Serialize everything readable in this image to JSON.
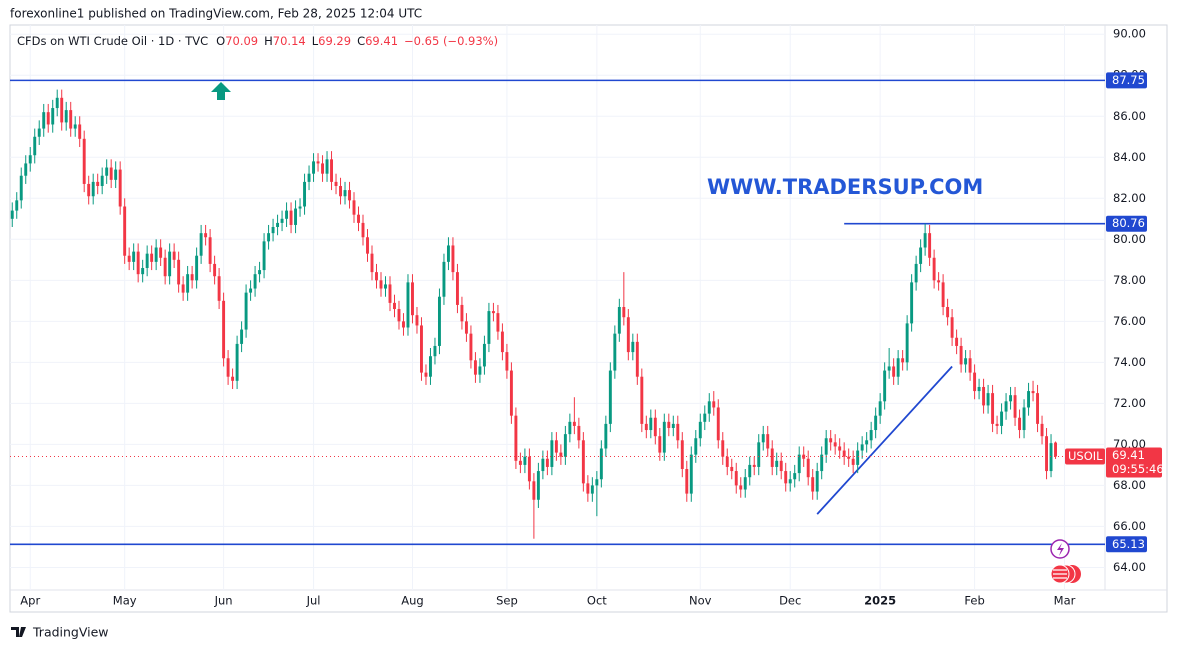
{
  "header": {
    "published": "forexonline1 published on TradingView.com, Feb 28, 2025 12:04 UTC",
    "watermark": "WWW.TRADERSUP.COM",
    "symbol": "USOIL",
    "countdown": "09:55:46"
  },
  "footer": {
    "brand": "TradingView"
  },
  "chart_data": {
    "type": "candlestick",
    "title": "CFDs on WTI Crude Oil · 1D · TVC",
    "ohlc_labels": [
      "O",
      "H",
      "L",
      "C"
    ],
    "change": "−0.65 (−0.93%)",
    "up_color": "#089981",
    "down_color": "#f23645",
    "level_color": "#2048d0",
    "grid": true,
    "ylim": [
      62.9,
      90.45
    ],
    "yticks": [
      {
        "value": 64,
        "label": "64.00"
      },
      {
        "value": 66,
        "label": "66.00"
      },
      {
        "value": 68,
        "label": "68.00"
      },
      {
        "value": 70,
        "label": "70.00"
      },
      {
        "value": 72,
        "label": "72.00"
      },
      {
        "value": 74,
        "label": "74.00"
      },
      {
        "value": 76,
        "label": "76.00"
      },
      {
        "value": 78,
        "label": "78.00"
      },
      {
        "value": 80,
        "label": "80.00"
      },
      {
        "value": 82,
        "label": "82.00"
      },
      {
        "value": 84,
        "label": "84.00"
      },
      {
        "value": 86,
        "label": "86.00"
      },
      {
        "value": 88,
        "label": "88.00"
      },
      {
        "value": 90,
        "label": "90.00"
      }
    ],
    "xlim": [
      -0.5,
      243
    ],
    "xticks": [
      {
        "value": 4,
        "label": "Apr"
      },
      {
        "value": 25,
        "label": "May"
      },
      {
        "value": 47,
        "label": "Jun"
      },
      {
        "value": 67,
        "label": "Jul"
      },
      {
        "value": 89,
        "label": "Aug"
      },
      {
        "value": 110,
        "label": "Sep"
      },
      {
        "value": 130,
        "label": "Oct"
      },
      {
        "value": 153,
        "label": "Nov"
      },
      {
        "value": 173,
        "label": "Dec"
      },
      {
        "value": 193,
        "label": "2025"
      },
      {
        "value": 214,
        "label": "Feb"
      },
      {
        "value": 234,
        "label": "Mar"
      }
    ],
    "levels": [
      {
        "value": 87.75
      },
      {
        "value": 80.76,
        "from": 185
      },
      {
        "value": 65.13
      }
    ],
    "trendline": {
      "x": [
        179,
        209
      ],
      "y": [
        66.6,
        73.8
      ]
    },
    "open": [
      81.0,
      81.4,
      81.9,
      83.1,
      83.7,
      84.1,
      85.0,
      85.4,
      86.2,
      85.6,
      86.4,
      86.9,
      85.7,
      86.3,
      85.4,
      85.6,
      84.9,
      82.7,
      82.1,
      82.8,
      82.6,
      83.1,
      83.5,
      82.9,
      83.4,
      81.6,
      79.2,
      78.9,
      79.4,
      78.3,
      78.6,
      79.3,
      78.9,
      79.6,
      79.1,
      78.2,
      79.4,
      79.0,
      77.8,
      77.4,
      78.3,
      78.0,
      79.2,
      80.3,
      80.1,
      78.8,
      78.2,
      77.0,
      74.2,
      73.3,
      73.1,
      74.9,
      75.6,
      77.4,
      77.6,
      78.3,
      78.5,
      79.9,
      80.3,
      80.6,
      80.8,
      81.0,
      81.4,
      80.7,
      81.5,
      81.6,
      82.8,
      83.2,
      83.8,
      83.7,
      83.2,
      83.9,
      82.8,
      82.6,
      82.1,
      82.4,
      81.9,
      81.2,
      80.8,
      80.1,
      79.3,
      78.4,
      78.0,
      77.6,
      77.8,
      76.9,
      76.6,
      76.0,
      75.7,
      77.9,
      76.3,
      75.8,
      73.5,
      73.3,
      74.3,
      74.8,
      77.2,
      78.9,
      79.7,
      78.4,
      76.8,
      76.0,
      75.4,
      74.1,
      73.4,
      73.8,
      74.9,
      76.5,
      76.4,
      75.5,
      74.5,
      73.6,
      71.4,
      69.2,
      69.0,
      69.4,
      68.2,
      67.3,
      68.7,
      69.3,
      68.9,
      70.2,
      69.6,
      69.4,
      70.5,
      71.1,
      70.9,
      70.2,
      68.1,
      67.6,
      68.0,
      68.3,
      69.8,
      71.0,
      73.6,
      75.4,
      76.7,
      76.2,
      74.5,
      75.0,
      73.3,
      71.0,
      70.7,
      71.3,
      70.4,
      69.6,
      71.1,
      70.8,
      71.0,
      70.2,
      68.8,
      67.6,
      69.5,
      70.3,
      71.1,
      71.5,
      72.1,
      71.8,
      70.2,
      69.4,
      68.9,
      68.7,
      68.0,
      67.8,
      68.4,
      69.0,
      68.9,
      70.1,
      70.5,
      69.8,
      68.9,
      69.2,
      68.7,
      68.1,
      68.3,
      68.6,
      69.5,
      69.3,
      68.4,
      67.7,
      68.7,
      69.5,
      70.3,
      70.1,
      69.9,
      69.7,
      69.4,
      69.3,
      69.0,
      69.7,
      70.0,
      70.2,
      70.7,
      71.4,
      72.1,
      73.6,
      73.8,
      73.3,
      74.2,
      74.0,
      75.9,
      77.9,
      78.8,
      79.6,
      80.3,
      79.1,
      78.0,
      77.9,
      76.7,
      76.2,
      75.2,
      74.8,
      73.9,
      74.2,
      73.5,
      72.6,
      72.8,
      71.9,
      72.5,
      71.0,
      70.9,
      71.6,
      72.1,
      72.4,
      71.3,
      70.7,
      71.8,
      72.6,
      72.5,
      71.0,
      70.4,
      68.7,
      70.09
    ],
    "high": [
      81.8,
      82.3,
      83.5,
      84.1,
      84.5,
      85.4,
      85.8,
      86.6,
      86.6,
      86.8,
      87.3,
      87.3,
      86.7,
      86.7,
      86.0,
      86.0,
      85.3,
      83.1,
      83.2,
      83.2,
      83.5,
      83.9,
      83.9,
      83.8,
      83.8,
      82.0,
      79.6,
      79.8,
      79.8,
      79.0,
      79.7,
      79.7,
      80.0,
      80.0,
      79.5,
      79.8,
      79.8,
      79.4,
      78.2,
      78.7,
      78.7,
      79.6,
      80.7,
      80.7,
      80.5,
      79.2,
      78.6,
      77.4,
      74.6,
      73.7,
      75.3,
      76.0,
      77.8,
      78.0,
      78.7,
      78.9,
      80.3,
      80.7,
      81.0,
      81.2,
      81.4,
      81.8,
      81.8,
      81.9,
      82.0,
      83.2,
      83.6,
      84.2,
      84.2,
      84.1,
      84.3,
      84.3,
      83.2,
      83.0,
      82.8,
      82.8,
      82.3,
      81.6,
      81.2,
      80.5,
      79.7,
      78.8,
      78.4,
      78.2,
      78.2,
      77.3,
      77.0,
      76.4,
      78.3,
      78.3,
      76.7,
      76.2,
      73.9,
      74.7,
      75.2,
      77.6,
      79.3,
      80.1,
      80.1,
      78.8,
      77.2,
      76.4,
      75.8,
      74.5,
      74.2,
      75.3,
      76.9,
      76.9,
      76.8,
      75.9,
      74.9,
      74.0,
      71.8,
      69.6,
      69.8,
      69.8,
      68.6,
      69.1,
      69.7,
      69.7,
      70.6,
      70.6,
      70.0,
      70.9,
      71.5,
      72.3,
      71.3,
      70.6,
      68.5,
      68.4,
      68.7,
      70.2,
      71.4,
      74.0,
      75.8,
      77.1,
      78.4,
      76.6,
      75.4,
      75.4,
      73.7,
      71.4,
      71.7,
      71.7,
      70.8,
      71.5,
      71.5,
      71.4,
      71.4,
      70.6,
      69.2,
      69.9,
      70.7,
      71.5,
      71.9,
      72.5,
      72.6,
      72.2,
      70.6,
      69.8,
      69.3,
      69.1,
      68.4,
      68.8,
      69.4,
      69.4,
      70.5,
      70.9,
      70.9,
      70.2,
      69.6,
      69.6,
      69.1,
      68.7,
      69.0,
      69.9,
      69.9,
      69.7,
      68.8,
      69.1,
      69.9,
      70.7,
      70.7,
      70.5,
      70.3,
      70.1,
      69.8,
      69.7,
      70.1,
      70.4,
      70.6,
      71.1,
      71.8,
      72.5,
      74.0,
      74.7,
      74.2,
      74.6,
      74.6,
      76.3,
      78.3,
      79.2,
      80.0,
      80.76,
      80.7,
      79.5,
      78.4,
      78.3,
      77.1,
      76.6,
      75.6,
      75.2,
      74.6,
      74.6,
      73.9,
      73.2,
      73.2,
      72.9,
      72.9,
      71.4,
      72.0,
      72.5,
      72.8,
      72.8,
      71.7,
      72.2,
      73.0,
      73.1,
      72.9,
      71.4,
      70.8,
      70.5,
      70.14
    ],
    "low": [
      80.6,
      81.0,
      81.5,
      82.7,
      83.3,
      83.7,
      84.6,
      85.0,
      85.2,
      85.2,
      86.0,
      85.3,
      85.3,
      85.0,
      85.0,
      84.5,
      82.3,
      81.7,
      81.7,
      82.2,
      82.2,
      82.7,
      82.5,
      82.5,
      81.2,
      78.8,
      78.5,
      78.5,
      77.9,
      77.9,
      78.2,
      78.5,
      78.5,
      78.7,
      77.8,
      77.8,
      78.6,
      77.4,
      77.0,
      77.0,
      77.6,
      77.6,
      78.8,
      79.7,
      78.4,
      77.8,
      76.6,
      73.8,
      72.9,
      72.7,
      72.7,
      74.5,
      75.2,
      77.0,
      77.2,
      77.9,
      78.1,
      79.5,
      79.9,
      80.2,
      80.4,
      80.6,
      80.3,
      80.3,
      81.1,
      81.2,
      82.4,
      82.8,
      83.3,
      82.8,
      82.8,
      82.4,
      82.2,
      81.7,
      81.7,
      81.5,
      80.8,
      80.4,
      79.7,
      78.9,
      78.0,
      77.6,
      77.2,
      77.2,
      76.5,
      76.2,
      75.6,
      75.3,
      75.3,
      75.9,
      75.4,
      73.1,
      72.9,
      72.9,
      73.9,
      74.4,
      76.8,
      78.5,
      78.0,
      76.4,
      75.6,
      75.0,
      73.7,
      73.0,
      73.0,
      73.4,
      74.5,
      76.0,
      75.1,
      74.1,
      73.2,
      71.0,
      68.8,
      68.6,
      68.6,
      67.8,
      65.4,
      66.9,
      68.3,
      68.5,
      68.5,
      69.2,
      69.0,
      69.0,
      70.1,
      70.5,
      69.8,
      67.7,
      67.2,
      67.2,
      66.5,
      67.9,
      69.4,
      70.6,
      73.2,
      75.0,
      75.8,
      74.1,
      74.1,
      72.9,
      70.6,
      70.3,
      70.3,
      70.0,
      69.2,
      69.2,
      70.4,
      70.4,
      69.8,
      68.4,
      67.2,
      67.2,
      69.1,
      69.9,
      70.7,
      71.1,
      71.4,
      69.8,
      69.0,
      68.5,
      68.3,
      67.6,
      67.4,
      67.4,
      68.0,
      68.5,
      68.5,
      69.7,
      69.4,
      68.5,
      68.5,
      68.3,
      67.7,
      67.7,
      67.9,
      68.2,
      68.9,
      68.0,
      67.3,
      67.3,
      68.3,
      69.1,
      69.7,
      69.5,
      69.3,
      69.0,
      68.9,
      68.6,
      68.6,
      69.3,
      69.6,
      69.8,
      70.3,
      71.0,
      71.7,
      73.2,
      72.9,
      72.9,
      73.6,
      73.6,
      75.5,
      77.5,
      78.4,
      79.2,
      78.7,
      77.6,
      77.5,
      76.3,
      75.8,
      74.8,
      74.4,
      73.5,
      73.5,
      73.1,
      72.2,
      72.2,
      71.5,
      71.5,
      70.6,
      70.5,
      70.5,
      71.2,
      71.7,
      70.9,
      70.3,
      70.3,
      71.4,
      72.1,
      70.6,
      70.0,
      68.3,
      68.4,
      69.29
    ],
    "close": [
      81.4,
      81.9,
      83.1,
      83.7,
      84.1,
      85.0,
      85.4,
      86.2,
      85.6,
      86.4,
      86.9,
      85.7,
      86.3,
      85.4,
      85.6,
      84.9,
      82.7,
      82.1,
      82.8,
      82.6,
      83.1,
      83.5,
      82.9,
      83.4,
      81.6,
      79.2,
      78.9,
      79.4,
      78.3,
      78.6,
      79.3,
      78.9,
      79.6,
      79.1,
      78.2,
      79.4,
      79.0,
      77.8,
      77.4,
      78.3,
      78.0,
      79.2,
      80.3,
      80.1,
      78.8,
      78.2,
      77.0,
      74.2,
      73.3,
      73.1,
      74.9,
      75.6,
      77.4,
      77.6,
      78.3,
      78.5,
      79.9,
      80.3,
      80.6,
      80.8,
      81.0,
      81.4,
      80.7,
      81.5,
      81.6,
      82.8,
      83.2,
      83.8,
      83.7,
      83.2,
      83.9,
      82.8,
      82.6,
      82.1,
      82.4,
      81.9,
      81.2,
      80.8,
      80.1,
      79.3,
      78.4,
      78.0,
      77.6,
      77.8,
      76.9,
      76.6,
      76.0,
      75.7,
      77.9,
      76.3,
      75.8,
      73.5,
      73.3,
      74.3,
      74.8,
      77.2,
      78.9,
      79.7,
      78.4,
      76.8,
      76.0,
      75.4,
      74.1,
      73.4,
      73.8,
      74.9,
      76.5,
      76.4,
      75.5,
      74.5,
      73.6,
      71.4,
      69.2,
      69.0,
      69.4,
      68.2,
      67.3,
      68.7,
      69.3,
      68.9,
      70.2,
      69.6,
      69.4,
      70.5,
      71.1,
      70.9,
      70.2,
      68.1,
      67.6,
      68.0,
      68.3,
      69.8,
      71.0,
      73.6,
      75.4,
      76.7,
      76.2,
      74.5,
      75.0,
      73.3,
      71.0,
      70.7,
      71.3,
      70.4,
      69.6,
      71.1,
      70.8,
      71.0,
      70.2,
      68.8,
      67.6,
      69.5,
      70.3,
      71.1,
      71.5,
      72.1,
      71.8,
      70.2,
      69.4,
      68.9,
      68.7,
      68.0,
      67.8,
      68.4,
      69.0,
      68.9,
      70.1,
      70.5,
      69.8,
      68.9,
      69.2,
      68.7,
      68.1,
      68.3,
      68.6,
      69.5,
      69.3,
      68.4,
      67.7,
      68.7,
      69.5,
      70.3,
      70.1,
      69.9,
      69.7,
      69.4,
      69.3,
      69.0,
      69.7,
      70.0,
      70.2,
      70.7,
      71.4,
      72.1,
      73.6,
      73.8,
      73.3,
      74.2,
      74.0,
      75.9,
      77.9,
      78.8,
      79.6,
      80.3,
      79.1,
      78.0,
      77.9,
      76.7,
      76.2,
      75.2,
      74.8,
      73.9,
      74.2,
      73.5,
      72.6,
      72.8,
      71.9,
      72.5,
      71.0,
      70.9,
      71.6,
      72.1,
      72.4,
      71.3,
      70.7,
      71.8,
      72.6,
      72.5,
      71.0,
      70.4,
      68.7,
      70.06,
      69.41
    ]
  }
}
